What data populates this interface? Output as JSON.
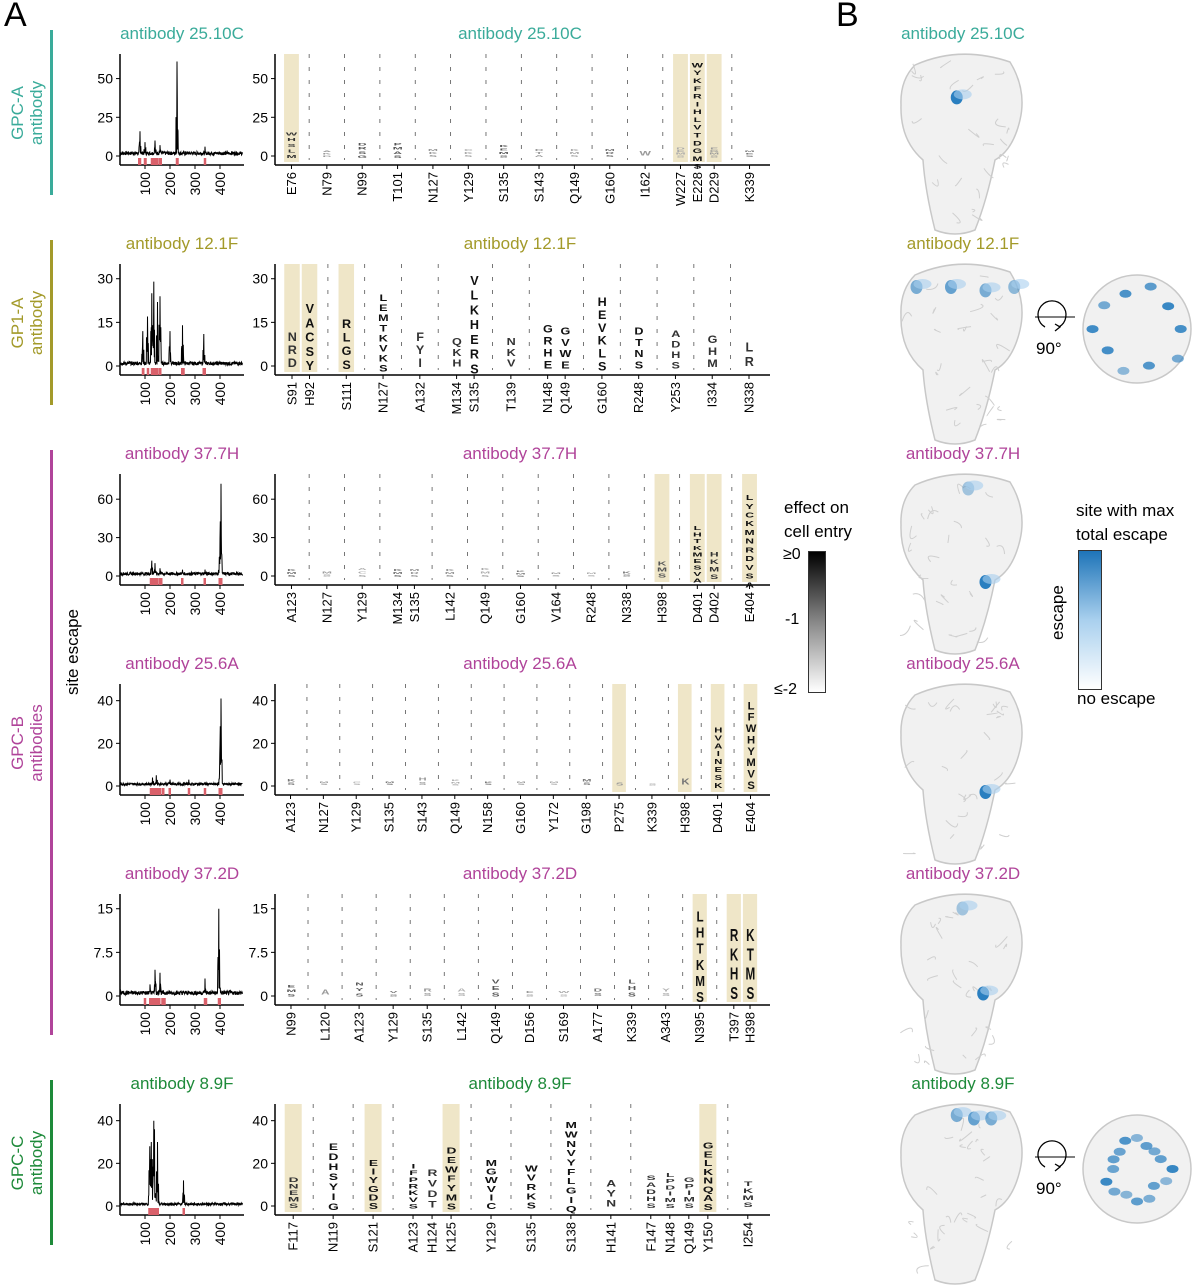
{
  "panels": {
    "a": "A",
    "b": "B"
  },
  "ylabel": "site escape",
  "colors": {
    "teal": "#3aab9a",
    "olive": "#a39a2a",
    "magenta": "#b0449a",
    "green": "#1e8a3a",
    "highlight": "#efe6c8",
    "sitemark": "#d9606a",
    "escape": "#2a7fc0"
  },
  "groups": [
    {
      "label1": "GPC-A",
      "label2": "antibody",
      "color": "#3aab9a",
      "rows": [
        0
      ]
    },
    {
      "label1": "GP1-A",
      "label2": "antibody",
      "color": "#a39a2a",
      "rows": [
        1
      ]
    },
    {
      "label1": "GPC-B",
      "label2": "antibodies",
      "color": "#b0449a",
      "rows": [
        2,
        3,
        4
      ]
    },
    {
      "label1": "GPC-C",
      "label2": "antibody",
      "color": "#1e8a3a",
      "rows": [
        5
      ]
    }
  ],
  "cell_entry_scale": {
    "title1": "effect on",
    "title2": "cell entry",
    "ticks": [
      "≥0",
      "-1",
      "≤-2"
    ]
  },
  "escape_scale": {
    "title1": "site with max",
    "title2": "total escape",
    "axis": "escape",
    "bottom": "no escape"
  },
  "rotation_label": "90°",
  "chart_data": [
    {
      "type": "line+logo",
      "title": "antibody 25.10C",
      "color": "#3aab9a",
      "yticks": [
        0,
        25,
        50
      ],
      "ymax": 62,
      "xticks": [
        100,
        200,
        300,
        400
      ],
      "peaks": [
        [
          80,
          16
        ],
        [
          100,
          9
        ],
        [
          140,
          10
        ],
        [
          160,
          7
        ],
        [
          228,
          61
        ],
        [
          340,
          6
        ]
      ],
      "baseline": 2,
      "groups": [
        [
          {
            "site": "E76",
            "h": 16,
            "letters": "WHSLM",
            "hl": true
          }
        ],
        [
          {
            "site": "N79",
            "h": 4,
            "letters": "AKD"
          }
        ],
        [
          {
            "site": "N99",
            "h": 9,
            "letters": "DRSG"
          }
        ],
        [
          {
            "site": "T101",
            "h": 9,
            "letters": "PMAS"
          }
        ],
        [
          {
            "site": "N127",
            "h": 5,
            "letters": "MKS"
          }
        ],
        [
          {
            "site": "Y129",
            "h": 5,
            "letters": "CKS"
          }
        ],
        [
          {
            "site": "S135",
            "h": 8,
            "letters": "KEMS"
          }
        ],
        [
          {
            "site": "S143",
            "h": 5,
            "letters": "DTA"
          }
        ],
        [
          {
            "site": "Q149",
            "h": 5,
            "letters": "KMS"
          }
        ],
        [
          {
            "site": "G160",
            "h": 5,
            "letters": "MRS"
          }
        ],
        [
          {
            "site": "I162",
            "h": 4,
            "letters": "W"
          }
        ],
        [
          {
            "site": "W227",
            "h": 6,
            "letters": "DEMS",
            "hl": true
          },
          {
            "site": "E228",
            "h": 61,
            "letters": "WYKFRIHLVTDGMS",
            "hl": true
          },
          {
            "site": "D229",
            "h": 6,
            "letters": "EGMS",
            "hl": true
          }
        ],
        [
          {
            "site": "K339",
            "h": 4,
            "letters": "MES"
          }
        ]
      ]
    },
    {
      "type": "line+logo",
      "title": "antibody 12.1F",
      "color": "#a39a2a",
      "yticks": [
        0,
        15,
        30
      ],
      "ymax": 33,
      "xticks": [
        100,
        200,
        300,
        400
      ],
      "peaks": [
        [
          91,
          12
        ],
        [
          110,
          17
        ],
        [
          127,
          25
        ],
        [
          135,
          29
        ],
        [
          150,
          22
        ],
        [
          160,
          24
        ],
        [
          200,
          12
        ],
        [
          250,
          14
        ],
        [
          335,
          11
        ]
      ],
      "baseline": 1,
      "groups": [
        [
          {
            "site": "S91",
            "h": 12,
            "letters": "NRD",
            "hl": true
          },
          {
            "site": "H92",
            "h": 22,
            "letters": "VACSY",
            "hl": true
          }
        ],
        [
          {
            "site": "S111",
            "h": 17,
            "letters": "RLGS",
            "hl": true
          }
        ],
        [
          {
            "site": "N127",
            "h": 25,
            "letters": "LEMTKVKS"
          }
        ],
        [
          {
            "site": "A132",
            "h": 12,
            "letters": "FYI"
          }
        ],
        [
          {
            "site": "M134",
            "h": 10,
            "letters": "QKH"
          },
          {
            "site": "S135",
            "h": 32,
            "letters": "VLKHERS"
          }
        ],
        [
          {
            "site": "T139",
            "h": 10,
            "letters": "NKV"
          }
        ],
        [
          {
            "site": "N148",
            "h": 15,
            "letters": "GRHE"
          },
          {
            "site": "Q149",
            "h": 14,
            "letters": "GVWE"
          }
        ],
        [
          {
            "site": "G160",
            "h": 24,
            "letters": "HEVKLS"
          }
        ],
        [
          {
            "site": "R248",
            "h": 14,
            "letters": "DTNS"
          }
        ],
        [
          {
            "site": "Y253",
            "h": 13,
            "letters": "ADHS"
          }
        ],
        [
          {
            "site": "I334",
            "h": 11,
            "letters": "GHM"
          }
        ],
        [
          {
            "site": "N338",
            "h": 9,
            "letters": "LR"
          }
        ]
      ]
    },
    {
      "type": "line+logo",
      "title": "antibody 37.7H",
      "color": "#b0449a",
      "yticks": [
        0,
        30,
        60
      ],
      "ymax": 75,
      "xticks": [
        100,
        200,
        300,
        400
      ],
      "peaks": [
        [
          127,
          12
        ],
        [
          140,
          10
        ],
        [
          160,
          6
        ],
        [
          250,
          5
        ],
        [
          340,
          5
        ],
        [
          398,
          12
        ],
        [
          401,
          40
        ],
        [
          404,
          72
        ]
      ],
      "baseline": 2,
      "groups": [
        [
          {
            "site": "A123",
            "h": 6,
            "letters": "KMS"
          }
        ],
        [
          {
            "site": "N127",
            "h": 4,
            "letters": "MS"
          }
        ],
        [
          {
            "site": "Y129",
            "h": 7,
            "letters": "ACS"
          }
        ],
        [
          {
            "site": "M134",
            "h": 6,
            "letters": "KMS"
          },
          {
            "site": "S135",
            "h": 6,
            "letters": "MRS"
          }
        ],
        [
          {
            "site": "L142",
            "h": 6,
            "letters": "KMS"
          }
        ],
        [
          {
            "site": "Q149",
            "h": 7,
            "letters": "KMS"
          }
        ],
        [
          {
            "site": "G160",
            "h": 5,
            "letters": "KMS"
          }
        ],
        [
          {
            "site": "V164",
            "h": 3,
            "letters": "MS"
          }
        ],
        [
          {
            "site": "R248",
            "h": 3,
            "letters": "MS"
          }
        ],
        [
          {
            "site": "N338",
            "h": 4,
            "letters": "KS"
          }
        ],
        [
          {
            "site": "H398",
            "h": 12,
            "letters": "KMS",
            "hl": true
          }
        ],
        [
          {
            "site": "D401",
            "h": 40,
            "letters": "LHTKMESVA",
            "hl": true
          },
          {
            "site": "D402",
            "h": 20,
            "letters": "HKMS",
            "hl": true
          }
        ],
        [
          {
            "site": "E404",
            "h": 65,
            "letters": "LYCKMNRDVSA",
            "hl": true
          }
        ]
      ]
    },
    {
      "type": "line+logo",
      "title": "antibody 25.6A",
      "color": "#b0449a",
      "yticks": [
        0,
        20,
        40
      ],
      "ymax": 45,
      "xticks": [
        100,
        200,
        300,
        400
      ],
      "peaks": [
        [
          130,
          4
        ],
        [
          145,
          5
        ],
        [
          200,
          3
        ],
        [
          275,
          3
        ],
        [
          398,
          6
        ],
        [
          401,
          28
        ],
        [
          404,
          41
        ]
      ],
      "baseline": 1,
      "groups": [
        [
          {
            "site": "A123",
            "h": 3,
            "letters": "KS"
          }
        ],
        [
          {
            "site": "N127",
            "h": 2,
            "letters": "MS"
          }
        ],
        [
          {
            "site": "Y129",
            "h": 2,
            "letters": "CS"
          }
        ],
        [
          {
            "site": "S135",
            "h": 2,
            "letters": "MS"
          }
        ],
        [
          {
            "site": "S143",
            "h": 4,
            "letters": "HS"
          }
        ],
        [
          {
            "site": "Q149",
            "h": 3,
            "letters": "KMS"
          }
        ],
        [
          {
            "site": "N158",
            "h": 2,
            "letters": "KS"
          }
        ],
        [
          {
            "site": "G160",
            "h": 2,
            "letters": "MS"
          }
        ],
        [
          {
            "site": "Y172",
            "h": 2,
            "letters": "MS"
          }
        ],
        [
          {
            "site": "G198",
            "h": 3,
            "letters": "MS"
          }
        ],
        [
          {
            "site": "P275",
            "h": 2,
            "letters": "S",
            "hl": true
          }
        ],
        [
          {
            "site": "K339",
            "h": 1,
            "letters": "S"
          }
        ],
        [
          {
            "site": "H398",
            "h": 4,
            "letters": "K",
            "hl": true
          }
        ],
        [
          {
            "site": "D401",
            "h": 28,
            "letters": "HVAINESK",
            "hl": true
          }
        ],
        [
          {
            "site": "E404",
            "h": 40,
            "letters": "LFWHYMVS",
            "hl": true
          }
        ]
      ]
    },
    {
      "type": "line+logo",
      "title": "antibody 37.2D",
      "color": "#b0449a",
      "yticks": [
        0,
        7.5,
        15
      ],
      "ymax": 16.5,
      "xticks": [
        100,
        200,
        300,
        400
      ],
      "peaks": [
        [
          120,
          2
        ],
        [
          140,
          4.5
        ],
        [
          160,
          4
        ],
        [
          340,
          3
        ],
        [
          395,
          15
        ],
        [
          398,
          3
        ]
      ],
      "baseline": 0.6,
      "groups": [
        [
          {
            "site": "N99",
            "h": 2,
            "letters": "EMS"
          }
        ],
        [
          {
            "site": "L120",
            "h": 1.2,
            "letters": "A"
          }
        ],
        [
          {
            "site": "A123",
            "h": 2.5,
            "letters": "NYS"
          }
        ],
        [
          {
            "site": "Y129",
            "h": 1,
            "letters": "VS"
          }
        ],
        [
          {
            "site": "S135",
            "h": 1.5,
            "letters": "RS"
          }
        ],
        [
          {
            "site": "L142",
            "h": 1.5,
            "letters": "AS"
          }
        ],
        [
          {
            "site": "Q149",
            "h": 3,
            "letters": "VES"
          }
        ],
        [
          {
            "site": "D156",
            "h": 1,
            "letters": "ES"
          }
        ],
        [
          {
            "site": "S169",
            "h": 1,
            "letters": "WS"
          }
        ],
        [
          {
            "site": "A177",
            "h": 1.5,
            "letters": "DS"
          }
        ],
        [
          {
            "site": "K339",
            "h": 3,
            "letters": "LHS"
          }
        ],
        [
          {
            "site": "A343",
            "h": 1.5,
            "letters": "YS"
          }
        ],
        [
          {
            "site": "N395",
            "h": 15,
            "letters": "LHTKMS",
            "hl": true
          }
        ],
        [
          {
            "site": "T397",
            "h": 12,
            "letters": "RKHS",
            "hl": true
          },
          {
            "site": "H398",
            "h": 12,
            "letters": "KTMS",
            "hl": true
          }
        ]
      ]
    },
    {
      "type": "line+logo",
      "title": "antibody 8.9F",
      "color": "#1e8a3a",
      "yticks": [
        0,
        20,
        40
      ],
      "ymax": 45,
      "xticks": [
        100,
        200,
        300,
        400
      ],
      "peaks": [
        [
          117,
          15
        ],
        [
          119,
          28
        ],
        [
          121,
          22
        ],
        [
          125,
          30
        ],
        [
          129,
          22
        ],
        [
          135,
          40
        ],
        [
          138,
          36
        ],
        [
          147,
          15
        ],
        [
          150,
          30
        ],
        [
          254,
          12
        ]
      ],
      "baseline": 1,
      "groups": [
        [
          {
            "site": "F117",
            "h": 14,
            "letters": "DNEMS",
            "hl": true
          }
        ],
        [
          {
            "site": "N119",
            "h": 30,
            "letters": "EDHSYIG"
          }
        ],
        [
          {
            "site": "S121",
            "h": 22,
            "letters": "EIYGDS",
            "hl": true
          }
        ],
        [
          {
            "site": "A123",
            "h": 20,
            "letters": "IFPRKVS"
          },
          {
            "site": "H124",
            "h": 18,
            "letters": "RVDT"
          },
          {
            "site": "K125",
            "h": 28,
            "letters": "DEWFYMS",
            "hl": true
          }
        ],
        [
          {
            "site": "Y129",
            "h": 22,
            "letters": "MGWVIC"
          }
        ],
        [
          {
            "site": "S135",
            "h": 20,
            "letters": "WVRKS"
          }
        ],
        [
          {
            "site": "S138",
            "h": 40,
            "letters": "MWNVYFLGIQ"
          }
        ],
        [
          {
            "site": "H141",
            "h": 13,
            "letters": "AYN"
          }
        ],
        [
          {
            "site": "F147",
            "h": 15,
            "letters": "SADHS"
          },
          {
            "site": "N148",
            "h": 16,
            "letters": "LPDIMS"
          },
          {
            "site": "Q149",
            "h": 14,
            "letters": "GPIMS"
          },
          {
            "site": "Y150",
            "h": 30,
            "letters": "GELKNQAS",
            "hl": true
          }
        ],
        [
          {
            "site": "I254",
            "h": 12,
            "letters": "TKMS"
          }
        ]
      ]
    }
  ]
}
